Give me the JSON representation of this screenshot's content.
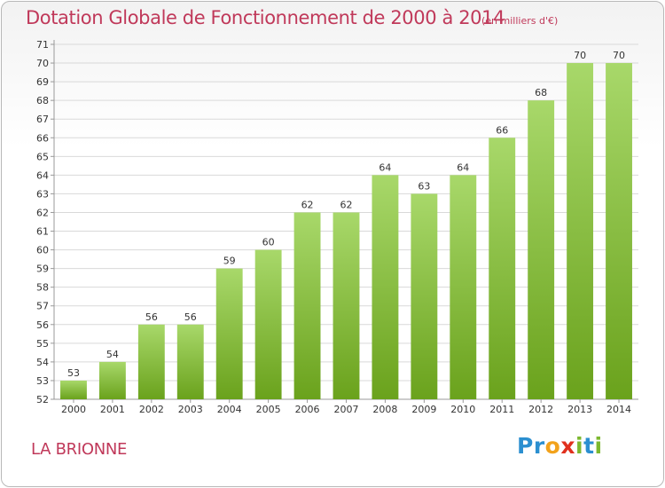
{
  "header": {
    "title": "Dotation Globale de Fonctionnement de 2000 à 2014",
    "unit": "(en milliers d'€)"
  },
  "commune": "LA BRIONNE",
  "logo": {
    "text": "Proxiti",
    "letters": [
      {
        "ch": "P",
        "color": "#2b8fd0"
      },
      {
        "ch": "r",
        "color": "#2b8fd0"
      },
      {
        "ch": "o",
        "color": "#f2a21b"
      },
      {
        "ch": "x",
        "color": "#e0301e"
      },
      {
        "ch": "i",
        "color": "#7cb82f"
      },
      {
        "ch": "t",
        "color": "#2b8fd0"
      },
      {
        "ch": "i",
        "color": "#7cb82f"
      }
    ]
  },
  "chart_data": {
    "type": "bar",
    "title": "Dotation Globale de Fonctionnement de 2000 à 2014",
    "subtitle": "(en milliers d'€)",
    "xlabel": "",
    "ylabel": "",
    "categories": [
      "2000",
      "2001",
      "2002",
      "2003",
      "2004",
      "2005",
      "2006",
      "2007",
      "2008",
      "2009",
      "2010",
      "2011",
      "2012",
      "2013",
      "2014"
    ],
    "values": [
      53,
      54,
      56,
      56,
      59,
      60,
      62,
      62,
      64,
      63,
      64,
      66,
      68,
      70,
      70
    ],
    "ylim": [
      52,
      71
    ],
    "yticks": [
      52,
      53,
      54,
      55,
      56,
      57,
      58,
      59,
      60,
      61,
      62,
      63,
      64,
      65,
      66,
      67,
      68,
      69,
      70,
      71
    ],
    "grid": true,
    "bar_color_light": "#a8d86a",
    "bar_color_dark": "#6aa21c",
    "grid_color": "#d9d9d9"
  }
}
